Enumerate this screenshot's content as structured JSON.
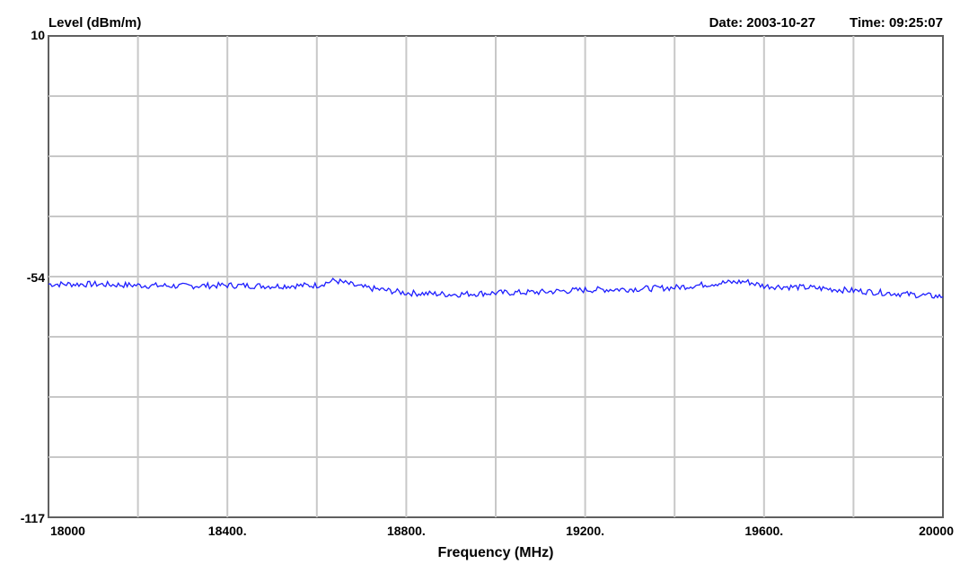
{
  "chart_data": {
    "type": "line",
    "ylabel": "Level (dBm/m)",
    "xlabel": "Frequency (MHz)",
    "header": {
      "date_label": "Date: 2003-10-27",
      "time_label": "Time: 09:25:07"
    },
    "xlim": [
      18000,
      20000
    ],
    "ylim": [
      -117,
      10
    ],
    "x_ticks": [
      {
        "value": 18000,
        "label": "18000"
      },
      {
        "value": 18400,
        "label": "18400."
      },
      {
        "value": 18800,
        "label": "18800."
      },
      {
        "value": 19200,
        "label": "19200."
      },
      {
        "value": 19600,
        "label": "19600."
      },
      {
        "value": 20000,
        "label": "20000"
      }
    ],
    "y_ticks": [
      {
        "value": 10,
        "label": "10"
      },
      {
        "value": -54,
        "label": "-54"
      },
      {
        "value": -117,
        "label": "-117"
      }
    ],
    "grid": true,
    "grid_x_step": 200,
    "grid_y_divisions": 8,
    "series": [
      {
        "color": "#1f1fff",
        "x": [
          18000,
          18100,
          18200,
          18300,
          18400,
          18500,
          18600,
          18640,
          18700,
          18800,
          18900,
          19000,
          19100,
          19200,
          19300,
          19400,
          19500,
          19560,
          19600,
          19700,
          19800,
          19900,
          20000
        ],
        "y": [
          -55.5,
          -55.5,
          -55.8,
          -56.0,
          -55.8,
          -56.0,
          -55.8,
          -54.5,
          -56.3,
          -57.8,
          -58.2,
          -57.8,
          -57.6,
          -57.0,
          -56.8,
          -56.4,
          -55.2,
          -54.8,
          -56.0,
          -56.4,
          -57.2,
          -58.0,
          -58.8
        ]
      }
    ]
  }
}
